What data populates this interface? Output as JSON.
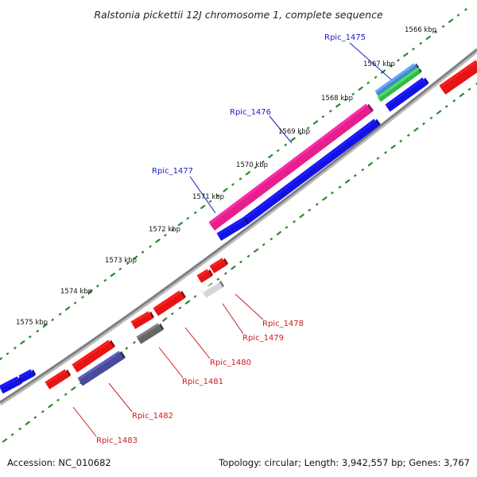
{
  "title": "Ralstonia pickettii 12J chromosome 1, complete sequence",
  "footer": {
    "accession": "Accession: NC_010682",
    "summary": "Topology: circular; Length: 3,942,557 bp; Genes: 3,767"
  },
  "colors": {
    "backbone": "#7f7f7f",
    "tick": "#2a8a2a",
    "forward_label": "#1c1ccc",
    "reverse_label": "#cc1c1c"
  },
  "kbp_labels": [
    "1566 kbp",
    "1567 kbp",
    "1568 kbp",
    "1569 kbp",
    "1570 kbp",
    "1571 kbp",
    "1572 kbp",
    "1573 kbp",
    "1574 kbp",
    "1575 kbp"
  ],
  "genes": [
    {
      "name": "Rpic_1475",
      "strand": "forward"
    },
    {
      "name": "Rpic_1476",
      "strand": "forward"
    },
    {
      "name": "Rpic_1477",
      "strand": "forward"
    },
    {
      "name": "Rpic_1478",
      "strand": "reverse"
    },
    {
      "name": "Rpic_1479",
      "strand": "reverse"
    },
    {
      "name": "Rpic_1480",
      "strand": "reverse"
    },
    {
      "name": "Rpic_1481",
      "strand": "reverse"
    },
    {
      "name": "Rpic_1482",
      "strand": "reverse"
    },
    {
      "name": "Rpic_1483",
      "strand": "reverse"
    }
  ]
}
